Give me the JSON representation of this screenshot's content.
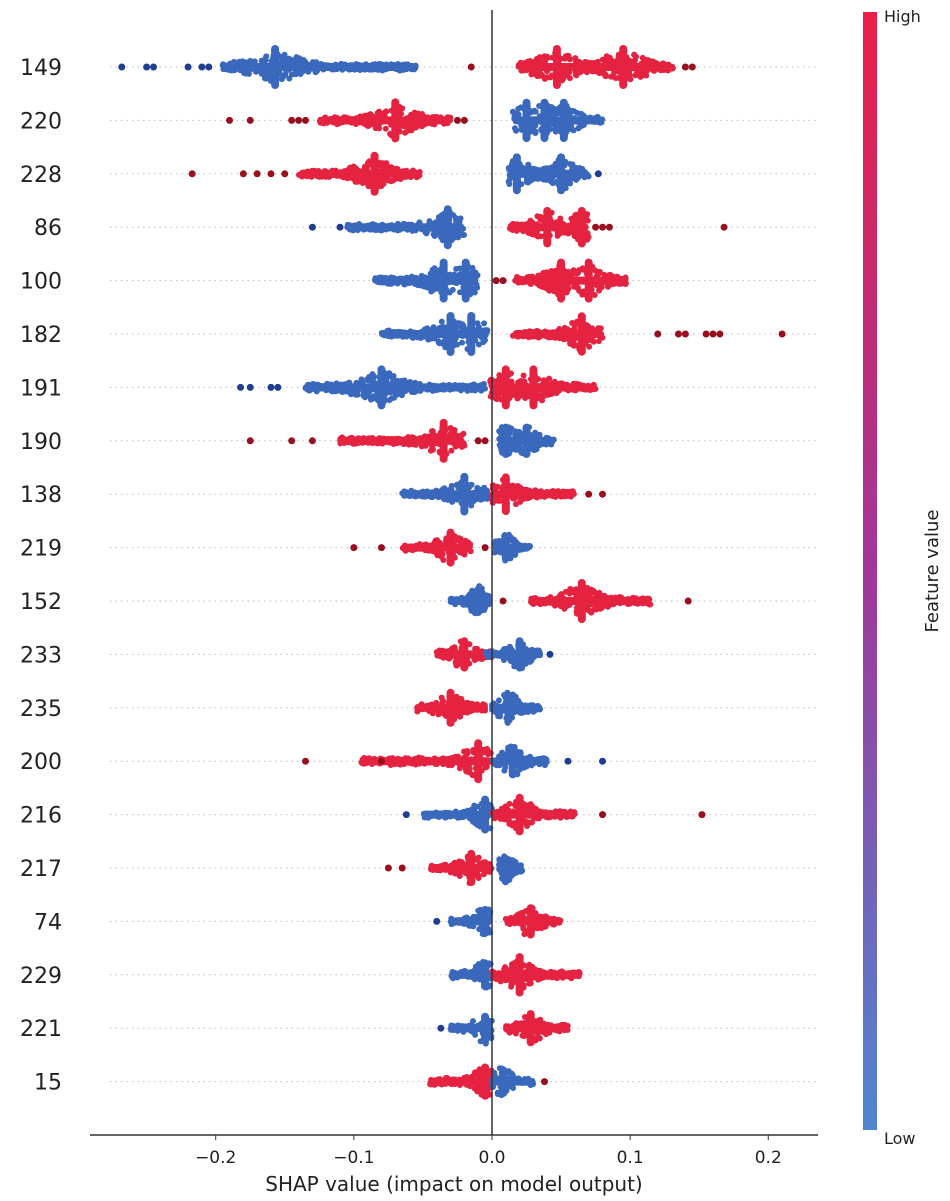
{
  "chart_data": {
    "type": "scatter",
    "subtype": "beeswarm",
    "title": "",
    "xlabel": "SHAP value (impact on model output)",
    "ylabel": "",
    "xlim": [
      -0.291,
      0.236
    ],
    "xticks": [
      -0.2,
      -0.1,
      0.0,
      0.1,
      0.2
    ],
    "xtick_labels": [
      "−0.2",
      "−0.1",
      "0.0",
      "0.1",
      "0.2"
    ],
    "grid": "dotted horizontal per feature",
    "colorbar": {
      "label": "Feature value",
      "high_label": "High",
      "low_label": "Low",
      "high_color": "#ea1f48",
      "low_color": "#4f86d0",
      "placement": "right"
    },
    "colors": {
      "low": "#3a68bd",
      "high": "#e52240",
      "low_outlier": "#1f3e92",
      "high_outlier": "#9a0f1f"
    },
    "features": [
      {
        "name": "149",
        "clusters": [
          {
            "c": "low",
            "min": -0.195,
            "max": -0.055,
            "peaks": [
              -0.157
            ]
          },
          {
            "c": "high",
            "min": 0.019,
            "max": 0.131,
            "peaks": [
              0.047,
              0.095
            ]
          }
        ],
        "outliers": [
          {
            "c": "low",
            "v": [
              -0.268,
              -0.25,
              -0.245,
              -0.22,
              -0.21,
              -0.205
            ]
          },
          {
            "c": "high",
            "v": [
              -0.015,
              0.14,
              0.145
            ]
          }
        ]
      },
      {
        "name": "220",
        "clusters": [
          {
            "c": "high",
            "min": -0.125,
            "max": -0.03,
            "peaks": [
              -0.07
            ]
          },
          {
            "c": "low",
            "min": 0.015,
            "max": 0.08,
            "peaks": [
              0.025,
              0.038,
              0.052
            ]
          }
        ],
        "outliers": [
          {
            "c": "high",
            "v": [
              -0.19,
              -0.175,
              -0.145,
              -0.14,
              -0.135,
              -0.025,
              -0.02
            ]
          }
        ]
      },
      {
        "name": "228",
        "clusters": [
          {
            "c": "high",
            "min": -0.14,
            "max": -0.052,
            "peaks": [
              -0.085
            ]
          },
          {
            "c": "low",
            "min": 0.012,
            "max": 0.07,
            "peaks": [
              0.018,
              0.05
            ]
          }
        ],
        "outliers": [
          {
            "c": "high",
            "v": [
              -0.217,
              -0.18,
              -0.17,
              -0.16,
              -0.15
            ]
          },
          {
            "c": "low",
            "v": [
              0.077
            ]
          }
        ]
      },
      {
        "name": "86",
        "clusters": [
          {
            "c": "low",
            "min": -0.105,
            "max": -0.02,
            "peaks": [
              -0.032
            ]
          },
          {
            "c": "high",
            "min": 0.013,
            "max": 0.07,
            "peaks": [
              0.04,
              0.065
            ]
          }
        ],
        "outliers": [
          {
            "c": "low",
            "v": [
              -0.13,
              -0.11
            ]
          },
          {
            "c": "high",
            "v": [
              0.075,
              0.08,
              0.085,
              0.168
            ]
          }
        ]
      },
      {
        "name": "100",
        "clusters": [
          {
            "c": "low",
            "min": -0.085,
            "max": -0.01,
            "peaks": [
              -0.035,
              -0.019
            ]
          },
          {
            "c": "high",
            "min": 0.016,
            "max": 0.098,
            "peaks": [
              0.05,
              0.07
            ]
          }
        ],
        "outliers": [
          {
            "c": "high",
            "v": [
              0.003,
              0.008
            ]
          }
        ]
      },
      {
        "name": "182",
        "clusters": [
          {
            "c": "low",
            "min": -0.08,
            "max": -0.003,
            "peaks": [
              -0.03,
              -0.015
            ]
          },
          {
            "c": "high",
            "min": 0.015,
            "max": 0.08,
            "peaks": [
              0.065
            ]
          }
        ],
        "outliers": [
          {
            "c": "high",
            "v": [
              0.12,
              0.135,
              0.14,
              0.155,
              0.16,
              0.165,
              0.21
            ]
          }
        ]
      },
      {
        "name": "191",
        "clusters": [
          {
            "c": "low",
            "min": -0.135,
            "max": -0.005,
            "peaks": [
              -0.08
            ]
          },
          {
            "c": "high",
            "min": -0.002,
            "max": 0.075,
            "peaks": [
              0.01,
              0.03
            ]
          }
        ],
        "outliers": [
          {
            "c": "low",
            "v": [
              -0.182,
              -0.175,
              -0.16,
              -0.155
            ]
          }
        ]
      },
      {
        "name": "190",
        "clusters": [
          {
            "c": "high",
            "min": -0.11,
            "max": -0.02,
            "peaks": [
              -0.035
            ]
          },
          {
            "c": "low",
            "min": 0.005,
            "max": 0.045,
            "peaks": [
              0.01,
              0.025
            ]
          }
        ],
        "outliers": [
          {
            "c": "high",
            "v": [
              -0.175,
              -0.145,
              -0.13,
              -0.01,
              -0.005
            ]
          }
        ]
      },
      {
        "name": "138",
        "clusters": [
          {
            "c": "low",
            "min": -0.065,
            "max": -0.002,
            "peaks": [
              -0.02
            ]
          },
          {
            "c": "high",
            "min": 0.0,
            "max": 0.06,
            "peaks": [
              0.01
            ]
          }
        ],
        "outliers": [
          {
            "c": "high",
            "v": [
              0.07,
              0.08
            ]
          }
        ]
      },
      {
        "name": "219",
        "clusters": [
          {
            "c": "high",
            "min": -0.065,
            "max": -0.015,
            "peaks": [
              -0.03
            ]
          },
          {
            "c": "low",
            "min": 0.002,
            "max": 0.028,
            "peaks": [
              0.01
            ]
          }
        ],
        "outliers": [
          {
            "c": "high",
            "v": [
              -0.1,
              -0.08,
              -0.005
            ]
          }
        ]
      },
      {
        "name": "152",
        "clusters": [
          {
            "c": "low",
            "min": -0.03,
            "max": -0.002,
            "peaks": [
              -0.01
            ]
          },
          {
            "c": "high",
            "min": 0.028,
            "max": 0.115,
            "peaks": [
              0.065
            ]
          }
        ],
        "outliers": [
          {
            "c": "high",
            "v": [
              0.008,
              0.142
            ]
          }
        ]
      },
      {
        "name": "233",
        "clusters": [
          {
            "c": "high",
            "min": -0.04,
            "max": 0.0,
            "peaks": [
              -0.02
            ]
          },
          {
            "c": "low",
            "min": -0.005,
            "max": 0.035,
            "peaks": [
              0.02
            ]
          }
        ],
        "outliers": [
          {
            "c": "low",
            "v": [
              0.042
            ]
          }
        ]
      },
      {
        "name": "235",
        "clusters": [
          {
            "c": "high",
            "min": -0.055,
            "max": -0.005,
            "peaks": [
              -0.03
            ]
          },
          {
            "c": "low",
            "min": 0.0,
            "max": 0.035,
            "peaks": [
              0.012
            ]
          }
        ],
        "outliers": []
      },
      {
        "name": "200",
        "clusters": [
          {
            "c": "high",
            "min": -0.095,
            "max": 0.0,
            "peaks": [
              -0.01
            ]
          },
          {
            "c": "low",
            "min": 0.0,
            "max": 0.04,
            "peaks": [
              0.015
            ]
          }
        ],
        "outliers": [
          {
            "c": "high",
            "v": [
              -0.135,
              -0.08
            ]
          },
          {
            "c": "low",
            "v": [
              0.055,
              0.08
            ]
          }
        ]
      },
      {
        "name": "216",
        "clusters": [
          {
            "c": "low",
            "min": -0.05,
            "max": 0.0,
            "peaks": [
              -0.005
            ]
          },
          {
            "c": "high",
            "min": 0.0,
            "max": 0.06,
            "peaks": [
              0.02
            ]
          }
        ],
        "outliers": [
          {
            "c": "low",
            "v": [
              -0.062
            ]
          },
          {
            "c": "high",
            "v": [
              0.08,
              0.152
            ]
          }
        ]
      },
      {
        "name": "217",
        "clusters": [
          {
            "c": "high",
            "min": -0.045,
            "max": 0.0,
            "peaks": [
              -0.015
            ]
          },
          {
            "c": "low",
            "min": 0.005,
            "max": 0.022,
            "peaks": [
              0.01
            ]
          }
        ],
        "outliers": [
          {
            "c": "high",
            "v": [
              -0.075,
              -0.065
            ]
          }
        ]
      },
      {
        "name": "74",
        "clusters": [
          {
            "c": "low",
            "min": -0.03,
            "max": 0.0,
            "peaks": [
              -0.005
            ]
          },
          {
            "c": "high",
            "min": 0.01,
            "max": 0.05,
            "peaks": [
              0.028
            ]
          }
        ],
        "outliers": [
          {
            "c": "low",
            "v": [
              -0.04
            ]
          }
        ]
      },
      {
        "name": "229",
        "clusters": [
          {
            "c": "low",
            "min": -0.03,
            "max": 0.0,
            "peaks": [
              -0.005
            ]
          },
          {
            "c": "high",
            "min": 0.0,
            "max": 0.065,
            "peaks": [
              0.02
            ]
          }
        ],
        "outliers": []
      },
      {
        "name": "221",
        "clusters": [
          {
            "c": "low",
            "min": -0.03,
            "max": 0.0,
            "peaks": [
              -0.005
            ]
          },
          {
            "c": "high",
            "min": 0.01,
            "max": 0.055,
            "peaks": [
              0.028
            ]
          }
        ],
        "outliers": [
          {
            "c": "low",
            "v": [
              -0.037
            ]
          }
        ]
      },
      {
        "name": "15",
        "clusters": [
          {
            "c": "high",
            "min": -0.045,
            "max": 0.0,
            "peaks": [
              -0.005
            ]
          },
          {
            "c": "low",
            "min": 0.0,
            "max": 0.03,
            "peaks": [
              0.008
            ]
          }
        ],
        "outliers": [
          {
            "c": "high",
            "v": [
              0.038
            ]
          }
        ]
      }
    ]
  }
}
